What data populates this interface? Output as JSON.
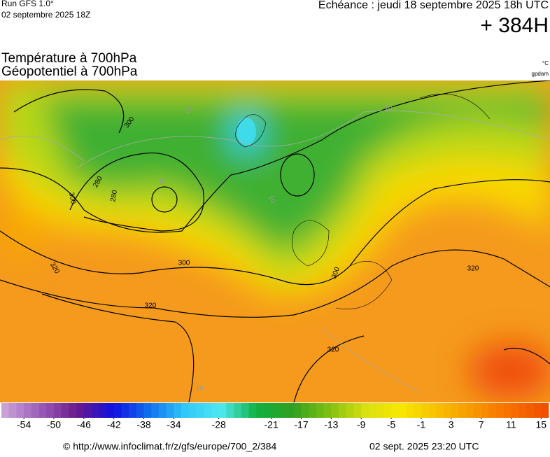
{
  "header": {
    "run": "Run GFS 1.0°",
    "run_date": "02 septembre 2025 18Z",
    "valid": "Echéance : jeudi 18 septembre 2025 18h UTC",
    "lead": "+ 384H"
  },
  "titles": {
    "field1": "Température à 700hPa",
    "field2": "Géopotentiel à 700hPa",
    "unit1": "°C",
    "unit2": "gpdam"
  },
  "map": {
    "contour_labels": [
      "300",
      "280",
      "300",
      "320",
      "300",
      "320",
      "300",
      "320",
      "320",
      "280",
      "10",
      "10",
      "10",
      "10",
      "10"
    ]
  },
  "colorbar": {
    "range": [
      -57,
      16
    ],
    "ticks": [
      -54,
      -50,
      -46,
      -42,
      -38,
      -34,
      -28,
      -21,
      -17,
      -13,
      -9,
      -5,
      -1,
      3,
      7,
      11,
      15
    ],
    "colors": [
      "#c9a0d8",
      "#9a5ab8",
      "#6a1a8a",
      "#1010e0",
      "#1070f0",
      "#30c8f8",
      "#50e8f0",
      "#10b040",
      "#30a020",
      "#80c010",
      "#d8e010",
      "#f8e800",
      "#f8c000",
      "#f89800",
      "#f87000",
      "#f05000"
    ]
  },
  "footer": {
    "source": "© http://www.infoclimat.fr/z/gfs/europe/700_2/384",
    "generated": "02 sept. 2025 23:20 UTC"
  }
}
